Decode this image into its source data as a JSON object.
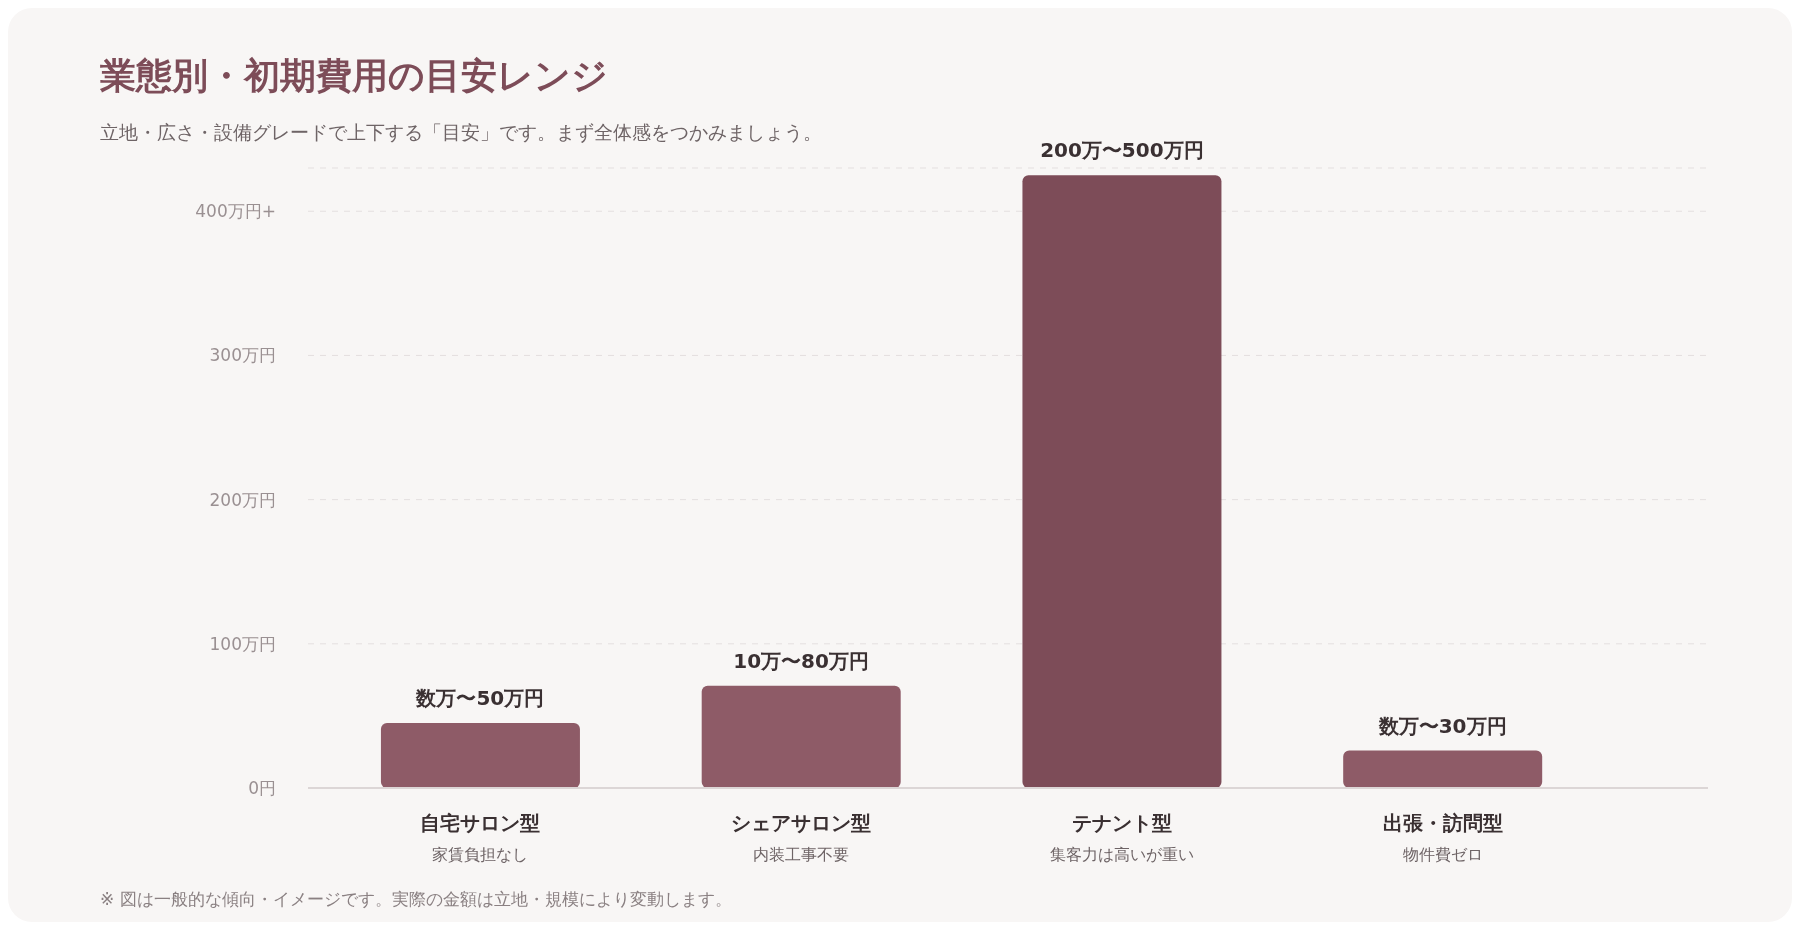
{
  "chart_data": {
    "type": "bar",
    "title": "業態別・初期費用の目安レンジ",
    "subtitle": "立地・広さ・設備グレードで上下する「目安」です。まず全体感をつかみましょう。",
    "categories": [
      "自宅サロン型",
      "シェアサロン型",
      "テナント型",
      "出張・訪問型"
    ],
    "values": [
      45,
      71,
      425,
      26
    ],
    "colors": [
      "#8e5b67",
      "#8e5b67",
      "#7d4c58",
      "#8e5b67"
    ],
    "ylim": [
      0,
      430
    ],
    "yticks": [
      {
        "value": 0,
        "label": "0円"
      },
      {
        "value": 100,
        "label": "100万円"
      },
      {
        "value": 200,
        "label": "200万円"
      },
      {
        "value": 300,
        "label": "300万円"
      },
      {
        "value": 400,
        "label": "400万円+"
      }
    ],
    "grid": "y",
    "annotations": [
      {
        "text": "数万〜50万円",
        "x": "自宅サロン型",
        "y": 45
      },
      {
        "text": "10万〜80万円",
        "x": "シェアサロン型",
        "y": 71
      },
      {
        "text": "200万〜500万円",
        "x": "テナント型",
        "y": 425
      },
      {
        "text": "数万〜30万円",
        "x": "出張・訪問型",
        "y": 26
      },
      "家賃負担なし",
      "内装工事不要",
      "集客力は高いが重い",
      "物件費ゼロ",
      "※ 図は一般的な傾向・イメージです。実際の金額は立地・規模により変動します。"
    ]
  }
}
